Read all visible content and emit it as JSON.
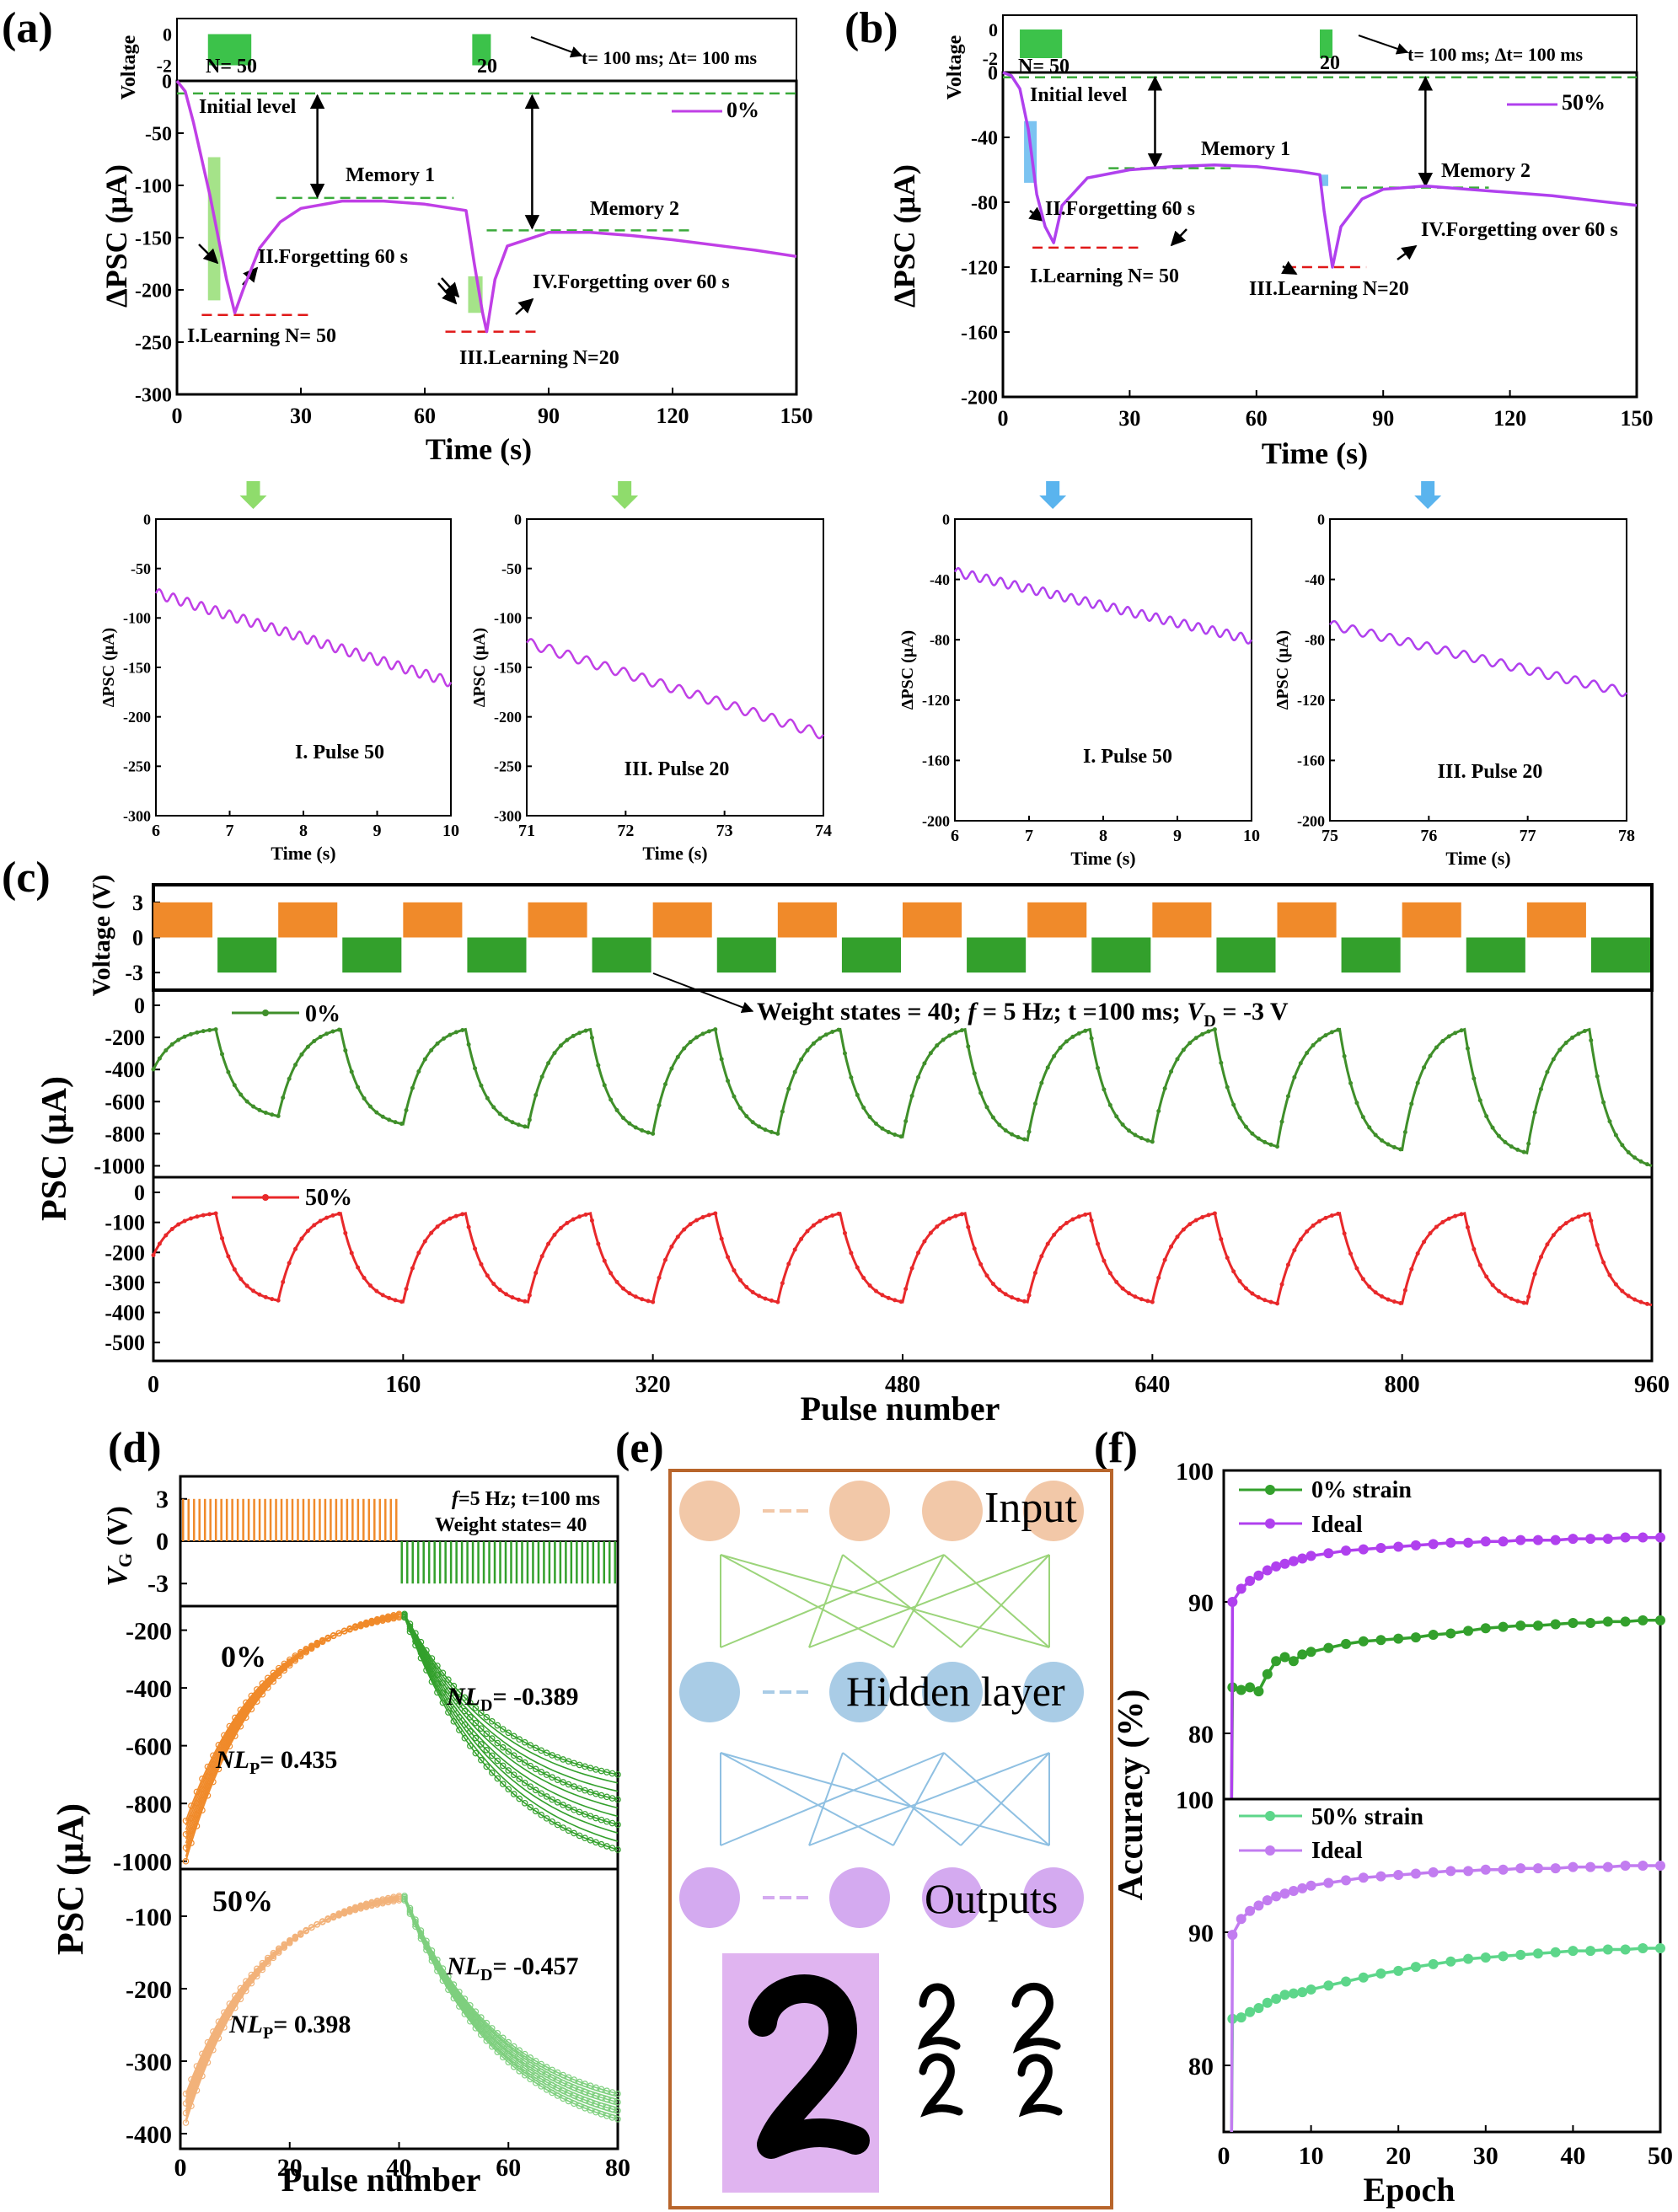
{
  "colors": {
    "magenta": "#c03fe6",
    "purple_line": "#b040ee",
    "light_green": "#8fdc6c",
    "blue": "#5ab4ee",
    "orange": "#f08a2a",
    "green": "#33a02c",
    "dark_green": "#3f8f2a",
    "red": "#e8282a",
    "pale_orange": "#f2b27a",
    "pale_green": "#7ecf7e",
    "peach": "#f2c8a8",
    "lblue": "#a9cce6",
    "lavender": "#d4aaf0",
    "dashed_green": "#3aaa3a",
    "dashed_red": "#e01818",
    "brown": "#b8652b"
  },
  "panel_labels": {
    "a": "(a)",
    "b": "(b)",
    "c": "(c)",
    "d": "(d)",
    "e": "(e)",
    "f": "(f)"
  },
  "a": {
    "voltage_label": "Voltage",
    "v_ticks": [
      "0",
      "-2"
    ],
    "n50": "N= 50",
    "n20": "20",
    "timing": "t= 100 ms;  Δt= 100 ms",
    "ylabel": "ΔPSC (μA)",
    "xlabel": "Time (s)",
    "legend": "0%",
    "initial": "Initial level",
    "memory1": "Memory 1",
    "memory2": "Memory 2",
    "forget1": "II.Forgetting  60 s",
    "forget2": "IV.Forgetting over 60 s",
    "learn1": "I.Learning N= 50",
    "learn2": "III.Learning N=20"
  },
  "b": {
    "voltage_label": "Voltage",
    "v_ticks": [
      "0",
      "-2"
    ],
    "n50": "N= 50",
    "n20": "20",
    "timing": "t= 100 ms;  Δt= 100 ms",
    "ylabel": "ΔPSC (μA)",
    "xlabel": "Time (s)",
    "legend": "50%",
    "initial": "Initial level",
    "memory1": "Memory 1",
    "memory2": "Memory 2",
    "forget1": "II.Forgetting  60 s",
    "forget2": "IV.Forgetting over 60 s",
    "learn1": "I.Learning N= 50",
    "learn2": "III.Learning N=20"
  },
  "insets": {
    "ylabel": "ΔPSC (μA)",
    "xlabel": "Time (s)",
    "a1": "I. Pulse 50",
    "a2": "III. Pulse 20",
    "b1": "I. Pulse 50",
    "b2": "III. Pulse 20"
  },
  "c": {
    "voltage_label": "Voltage (V)",
    "v_ticks": [
      "3",
      "0",
      "-3"
    ],
    "ylabel": "PSC (μA)",
    "xlabel": "Pulse number",
    "legend1": "0%",
    "legend2": "50%",
    "annotation": "Weight states = 40;   f = 5 Hz;   t =100 ms;   V D = -3 V",
    "ann_part1": "Weight states = 40;   ",
    "ann_f": "f",
    "ann_part2": " = 5 Hz;   t =100 ms;   ",
    "ann_v": "V",
    "ann_sub": "D",
    "ann_part3": " = -3 V"
  },
  "d": {
    "vg": "V",
    "vg_sub": "G",
    "vg_unit": " (V)",
    "v_ticks": [
      "3",
      "0",
      "-3"
    ],
    "info1_f": "f",
    "info1_rest": "=5 Hz; t=100 ms",
    "info2": "Weight states= 40",
    "ylabel": "PSC (μA)",
    "xlabel": "Pulse number",
    "label0": "0%",
    "label50": "50%",
    "nl_prefix": "NL",
    "nlp0": "= 0.435",
    "nld0": "= -0.389",
    "nlp50": "= 0.398",
    "nld50": "= -0.457",
    "sub_p": "P",
    "sub_d": "D"
  },
  "e": {
    "input": "Input",
    "hidden": "Hidden layer",
    "outputs": "Outputs"
  },
  "f": {
    "ylabel": "Accuracy (%)",
    "xlabel": "Epoch",
    "legend_top": [
      "0% strain",
      "Ideal"
    ],
    "legend_bot": [
      "50% strain",
      "Ideal"
    ]
  },
  "chart_data": [
    {
      "id": "a",
      "type": "line",
      "title": "",
      "xlabel": "Time (s)",
      "ylabel": "ΔPSC (μA)",
      "xlim": [
        0,
        150
      ],
      "ylim": [
        -300,
        0
      ],
      "xticks": [
        0,
        30,
        60,
        90,
        120,
        150
      ],
      "yticks": [
        0,
        -50,
        -100,
        -150,
        -200,
        -250,
        -300
      ],
      "series": [
        {
          "name": "0%",
          "x": [
            0,
            2,
            4,
            6,
            8,
            10,
            12,
            14,
            16,
            20,
            25,
            30,
            40,
            50,
            60,
            70,
            72,
            74,
            75,
            77,
            80,
            90,
            100,
            110,
            120,
            130,
            140,
            150
          ],
          "y": [
            0,
            -10,
            -40,
            -75,
            -110,
            -150,
            -190,
            -222,
            -200,
            -160,
            -135,
            -122,
            -115,
            -115,
            -118,
            -124,
            -175,
            -222,
            -240,
            -190,
            -158,
            -145,
            -145,
            -148,
            -152,
            -157,
            -162,
            -168
          ]
        }
      ],
      "pulse_train_x": [
        [
          7.5,
          18
        ],
        [
          71.5,
          76
        ]
      ]
    },
    {
      "id": "b",
      "type": "line",
      "title": "",
      "xlabel": "Time (s)",
      "ylabel": "ΔPSC (μA)",
      "xlim": [
        0,
        150
      ],
      "ylim": [
        -200,
        0
      ],
      "xticks": [
        0,
        30,
        60,
        90,
        120,
        150
      ],
      "yticks": [
        0,
        -40,
        -80,
        -120,
        -160,
        -200
      ],
      "series": [
        {
          "name": "50%",
          "x": [
            0,
            2,
            4,
            6,
            8,
            10,
            12,
            14,
            20,
            30,
            40,
            50,
            60,
            70,
            75,
            76,
            78,
            80,
            85,
            90,
            100,
            110,
            120,
            130,
            140,
            150
          ],
          "y": [
            0,
            -2,
            -10,
            -35,
            -75,
            -95,
            -105,
            -82,
            -65,
            -60,
            -58,
            -57,
            -58,
            -61,
            -63,
            -85,
            -120,
            -95,
            -78,
            -72,
            -70,
            -72,
            -74,
            -76,
            -79,
            -82
          ]
        }
      ],
      "pulse_train_x": [
        [
          4,
          14
        ],
        [
          75,
          78
        ]
      ]
    },
    {
      "id": "a-inset-1",
      "type": "line",
      "xlabel": "Time (s)",
      "ylabel": "ΔPSC (μA)",
      "xlim": [
        6,
        10
      ],
      "ylim": [
        -300,
        0
      ],
      "xticks": [
        6,
        7,
        8,
        9,
        10
      ],
      "yticks": [
        0,
        -50,
        -100,
        -150,
        -200,
        -250,
        -300
      ],
      "series": [
        {
          "name": "I. Pulse 50",
          "x_start": 6,
          "x_end": 10,
          "y_start": -75,
          "y_end": -165,
          "oscillations": 21,
          "amp": 5
        }
      ]
    },
    {
      "id": "a-inset-2",
      "type": "line",
      "xlabel": "Time (s)",
      "ylabel": "ΔPSC (μA)",
      "xlim": [
        71,
        74
      ],
      "ylim": [
        -300,
        0
      ],
      "xticks": [
        71,
        72,
        73,
        74
      ],
      "yticks": [
        0,
        -50,
        -100,
        -150,
        -200,
        -250,
        -300
      ],
      "series": [
        {
          "name": "III. Pulse 20",
          "x_start": 71,
          "x_end": 74,
          "y_start": -125,
          "y_end": -218,
          "oscillations": 16,
          "amp": 5
        }
      ]
    },
    {
      "id": "b-inset-1",
      "type": "line",
      "xlabel": "Time (s)",
      "ylabel": "ΔPSC (μA)",
      "xlim": [
        6,
        10
      ],
      "ylim": [
        -200,
        0
      ],
      "xticks": [
        6,
        7,
        8,
        9,
        10
      ],
      "yticks": [
        0,
        -40,
        -80,
        -120,
        -160,
        -200
      ],
      "series": [
        {
          "name": "I. Pulse 50",
          "x_start": 6,
          "x_end": 10,
          "y_start": -35,
          "y_end": -80,
          "oscillations": 21,
          "amp": 3
        }
      ]
    },
    {
      "id": "b-inset-2",
      "type": "line",
      "xlabel": "Time (s)",
      "ylabel": "ΔPSC (μA)",
      "xlim": [
        75,
        78
      ],
      "ylim": [
        -200,
        0
      ],
      "xticks": [
        75,
        76,
        77,
        78
      ],
      "yticks": [
        0,
        -40,
        -80,
        -120,
        -160,
        -200
      ],
      "series": [
        {
          "name": "III. Pulse 20",
          "x_start": 75,
          "x_end": 78,
          "y_start": -70,
          "y_end": -115,
          "oscillations": 16,
          "amp": 3
        }
      ]
    },
    {
      "id": "c",
      "type": "line",
      "xlabel": "Pulse number",
      "ylabel": "PSC (μA)",
      "xlim": [
        0,
        960
      ],
      "xticks": [
        0,
        160,
        320,
        480,
        640,
        800,
        960
      ],
      "voltage": {
        "ylim": [
          -4,
          4
        ],
        "pulse_high": 3,
        "pulse_low": -3,
        "period": 80
      },
      "series": [
        {
          "name": "0%",
          "ylim": [
            -1050,
            0
          ],
          "yticks": [
            0,
            -200,
            -400,
            -600,
            -800,
            -1000
          ],
          "cycle_peaks": [
            -150,
            -150,
            -150,
            -150,
            -150,
            -150,
            -150,
            -150,
            -150,
            -150,
            -150,
            -150
          ],
          "cycle_troughs": [
            -690,
            -740,
            -760,
            -800,
            -800,
            -820,
            -840,
            -850,
            -880,
            -900,
            -920,
            -1000
          ]
        },
        {
          "name": "50%",
          "ylim": [
            -550,
            0
          ],
          "yticks": [
            0,
            -100,
            -200,
            -300,
            -400,
            -500
          ],
          "cycle_peaks": [
            -70,
            -70,
            -70,
            -70,
            -70,
            -70,
            -70,
            -70,
            -70,
            -70,
            -70,
            -70
          ],
          "cycle_troughs": [
            -360,
            -365,
            -365,
            -365,
            -365,
            -365,
            -365,
            -365,
            -370,
            -370,
            -370,
            -375
          ]
        }
      ]
    },
    {
      "id": "d",
      "type": "scatter",
      "xlabel": "Pulse number",
      "ylabel": "PSC (μA)",
      "xlim": [
        0,
        80
      ],
      "xticks": [
        0,
        20,
        40,
        60,
        80
      ],
      "voltage": {
        "ylim": [
          -4,
          4
        ],
        "yticks": [
          3,
          0,
          -3
        ],
        "potentiation": 3,
        "depression": -3
      },
      "series": [
        {
          "name": "0%",
          "ylim": [
            -1100,
            0
          ],
          "yticks": [
            -200,
            -400,
            -600,
            -800,
            -1000
          ],
          "potentiation_start": [
            -1000,
            -860
          ],
          "potentiation_end": -150,
          "depression_end": [
            -700,
            -960
          ],
          "NL_P": 0.435,
          "NL_D": -0.389
        },
        {
          "name": "50%",
          "ylim": [
            -450,
            0
          ],
          "yticks": [
            -100,
            -200,
            -300,
            -400
          ],
          "potentiation_start": [
            -385,
            -345
          ],
          "potentiation_end": -75,
          "depression_end": [
            -345,
            -380
          ],
          "NL_P": 0.398,
          "NL_D": -0.457
        }
      ]
    },
    {
      "id": "f",
      "type": "line",
      "xlabel": "Epoch",
      "ylabel": "Accuracy (%)",
      "xlim": [
        0,
        50
      ],
      "xticks": [
        0,
        10,
        20,
        30,
        40,
        50
      ],
      "panels": [
        {
          "ylim": [
            75,
            100
          ],
          "yticks": [
            80,
            90,
            100
          ],
          "series": [
            {
              "name": "0% strain",
              "x": [
                1,
                2,
                3,
                4,
                5,
                6,
                7,
                8,
                9,
                10,
                12,
                14,
                16,
                18,
                20,
                22,
                24,
                26,
                28,
                30,
                32,
                34,
                36,
                38,
                40,
                42,
                44,
                46,
                48,
                50
              ],
              "y": [
                83.5,
                83.3,
                83.5,
                83.2,
                84.5,
                85.5,
                85.8,
                85.5,
                86.0,
                86.2,
                86.5,
                86.8,
                87.0,
                87.1,
                87.2,
                87.3,
                87.5,
                87.6,
                87.8,
                88.0,
                88.1,
                88.2,
                88.2,
                88.3,
                88.4,
                88.4,
                88.5,
                88.5,
                88.6,
                88.6
              ]
            },
            {
              "name": "Ideal",
              "x": [
                1,
                2,
                3,
                4,
                5,
                6,
                7,
                8,
                9,
                10,
                12,
                14,
                16,
                18,
                20,
                22,
                24,
                26,
                28,
                30,
                32,
                34,
                36,
                38,
                40,
                42,
                44,
                46,
                48,
                50
              ],
              "y": [
                90.0,
                91.0,
                91.6,
                92.0,
                92.4,
                92.7,
                92.9,
                93.1,
                93.3,
                93.5,
                93.7,
                93.9,
                94.0,
                94.1,
                94.2,
                94.3,
                94.4,
                94.5,
                94.5,
                94.6,
                94.6,
                94.7,
                94.7,
                94.7,
                94.8,
                94.8,
                94.8,
                94.9,
                94.9,
                94.9
              ]
            }
          ]
        },
        {
          "ylim": [
            75,
            100
          ],
          "yticks": [
            80,
            90,
            100
          ],
          "series": [
            {
              "name": "50% strain",
              "x": [
                1,
                2,
                3,
                4,
                5,
                6,
                7,
                8,
                9,
                10,
                12,
                14,
                16,
                18,
                20,
                22,
                24,
                26,
                28,
                30,
                32,
                34,
                36,
                38,
                40,
                42,
                44,
                46,
                48,
                50
              ],
              "y": [
                83.5,
                83.6,
                84.0,
                84.3,
                84.7,
                85.0,
                85.3,
                85.4,
                85.5,
                85.7,
                86.0,
                86.3,
                86.6,
                86.9,
                87.1,
                87.4,
                87.6,
                87.8,
                88.0,
                88.1,
                88.2,
                88.3,
                88.4,
                88.5,
                88.6,
                88.6,
                88.7,
                88.7,
                88.8,
                88.8
              ]
            },
            {
              "name": "Ideal",
              "x": [
                1,
                2,
                3,
                4,
                5,
                6,
                7,
                8,
                9,
                10,
                12,
                14,
                16,
                18,
                20,
                22,
                24,
                26,
                28,
                30,
                32,
                34,
                36,
                38,
                40,
                42,
                44,
                46,
                48,
                50
              ],
              "y": [
                89.8,
                91.0,
                91.6,
                92.0,
                92.4,
                92.7,
                92.9,
                93.1,
                93.3,
                93.5,
                93.7,
                93.9,
                94.1,
                94.2,
                94.3,
                94.4,
                94.5,
                94.6,
                94.6,
                94.7,
                94.7,
                94.8,
                94.8,
                94.8,
                94.9,
                94.9,
                94.9,
                95.0,
                95.0,
                95.0
              ]
            }
          ]
        }
      ]
    }
  ]
}
